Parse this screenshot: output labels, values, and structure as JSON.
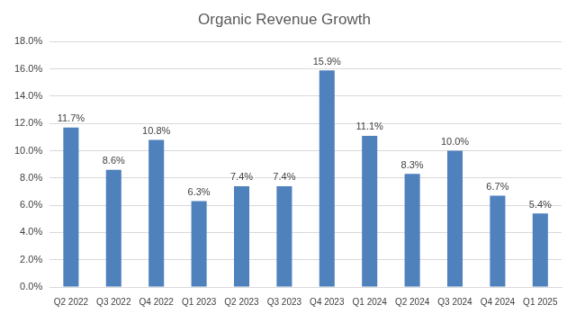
{
  "chart_data": {
    "type": "bar",
    "title": "Organic Revenue Growth",
    "categories": [
      "Q2 2022",
      "Q3 2022",
      "Q4 2022",
      "Q1 2023",
      "Q2 2023",
      "Q3 2023",
      "Q4 2023",
      "Q1 2024",
      "Q2 2024",
      "Q3 2024",
      "Q4 2024",
      "Q1 2025"
    ],
    "values": [
      11.7,
      8.6,
      10.8,
      6.3,
      7.4,
      7.4,
      15.9,
      11.1,
      8.3,
      10.0,
      6.7,
      5.4
    ],
    "value_labels": [
      "11.7%",
      "8.6%",
      "10.8%",
      "6.3%",
      "7.4%",
      "7.4%",
      "15.9%",
      "11.1%",
      "8.3%",
      "10.0%",
      "6.7%",
      "5.4%"
    ],
    "color": "#4f81bd",
    "ylim": [
      0,
      18
    ],
    "yticks": [
      {
        "value": 0,
        "label": "0.0%"
      },
      {
        "value": 2,
        "label": "2.0%"
      },
      {
        "value": 4,
        "label": "4.0%"
      },
      {
        "value": 6,
        "label": "6.0%"
      },
      {
        "value": 8,
        "label": "8.0%"
      },
      {
        "value": 10,
        "label": "10.0%"
      },
      {
        "value": 12,
        "label": "12.0%"
      },
      {
        "value": 14,
        "label": "14.0%"
      },
      {
        "value": 16,
        "label": "16.0%"
      },
      {
        "value": 18,
        "label": "18.0%"
      }
    ],
    "grid": true,
    "data_labels": true
  }
}
